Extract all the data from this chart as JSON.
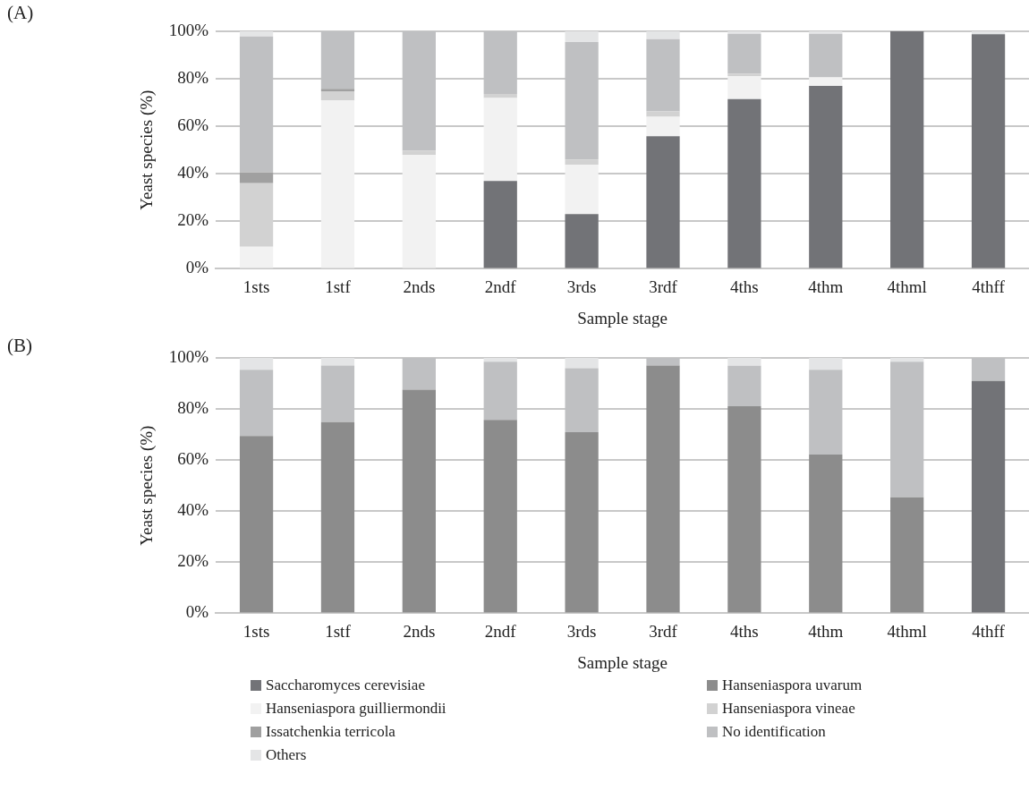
{
  "chart_data": [
    {
      "type": "bar",
      "stacked": true,
      "annotations": [
        "(A)"
      ],
      "xlabel": "Sample stage",
      "ylabel": "Yeast species (%)",
      "categories": [
        "1sts",
        "1stf",
        "2nds",
        "2ndf",
        "3rds",
        "3rdf",
        "4ths",
        "4thm",
        "4thml",
        "4thff"
      ],
      "ylim": [
        0,
        100
      ],
      "yticks": [
        {
          "value": 0,
          "label": "0%"
        },
        {
          "value": 20,
          "label": "20%"
        },
        {
          "value": 40,
          "label": "40%"
        },
        {
          "value": 60,
          "label": "60%"
        },
        {
          "value": 80,
          "label": "80%"
        },
        {
          "value": 100,
          "label": "100%"
        }
      ],
      "grid": "y",
      "legend": "bottom",
      "series": [
        {
          "name": "Saccharomyces cerevisiae",
          "color": "#727377",
          "values": [
            0,
            0,
            0,
            37,
            23,
            55.8,
            71.5,
            77,
            100,
            98.8
          ]
        },
        {
          "name": "Hanseniaspora guilliermondii",
          "color": "#f2f2f2",
          "values": [
            9.3,
            71,
            48,
            34.9,
            20.9,
            8.2,
            9.7,
            3.6,
            0,
            0
          ]
        },
        {
          "name": "Hanseniaspora vineae",
          "color": "#d2d2d2",
          "values": [
            26.7,
            3.8,
            1.8,
            1.7,
            2.1,
            2.3,
            1,
            0,
            0,
            0
          ]
        },
        {
          "name": "Issatchenkia terricola",
          "color": "#a0a0a0",
          "values": [
            4.6,
            1,
            0,
            0,
            0,
            0,
            0,
            0,
            0,
            0
          ]
        },
        {
          "name": "No identification",
          "color": "#bfc0c2",
          "values": [
            57.2,
            24.2,
            50.2,
            26.4,
            49.5,
            30.4,
            16.8,
            18.4,
            0,
            0
          ]
        },
        {
          "name": "Others",
          "color": "#e4e5e6",
          "values": [
            2.2,
            0,
            0,
            0,
            4.5,
            3.3,
            1,
            1,
            0,
            1.2
          ]
        }
      ]
    },
    {
      "type": "bar",
      "stacked": true,
      "annotations": [
        "(B)"
      ],
      "xlabel": "Sample stage",
      "ylabel": "Yeast species (%)",
      "categories": [
        "1sts",
        "1stf",
        "2nds",
        "2ndf",
        "3rds",
        "3rdf",
        "4ths",
        "4thm",
        "4thml",
        "4thff"
      ],
      "ylim": [
        0,
        100
      ],
      "yticks": [
        {
          "value": 0,
          "label": "0%"
        },
        {
          "value": 20,
          "label": "20%"
        },
        {
          "value": 40,
          "label": "40%"
        },
        {
          "value": 60,
          "label": "60%"
        },
        {
          "value": 80,
          "label": "80%"
        },
        {
          "value": 100,
          "label": "100%"
        }
      ],
      "grid": "y",
      "legend": "bottom",
      "series": [
        {
          "name": "Saccharomyces cerevisiae",
          "color": "#727377",
          "values": [
            0,
            0,
            0,
            0,
            0,
            0,
            0,
            0,
            0,
            91
          ]
        },
        {
          "name": "Hanseniaspora uvarum",
          "color": "#8c8c8c",
          "values": [
            69.4,
            74.9,
            87.6,
            75.7,
            70.9,
            97,
            81.1,
            62.2,
            45.4,
            0
          ]
        },
        {
          "name": "No identification",
          "color": "#bfc0c2",
          "values": [
            26,
            22.1,
            12.4,
            22.8,
            25.1,
            3,
            15.8,
            33.2,
            53.1,
            9
          ]
        },
        {
          "name": "Others",
          "color": "#e4e5e6",
          "values": [
            4.6,
            3,
            0,
            1.5,
            4,
            0,
            3.1,
            4.6,
            1.5,
            0
          ]
        }
      ]
    }
  ]
}
